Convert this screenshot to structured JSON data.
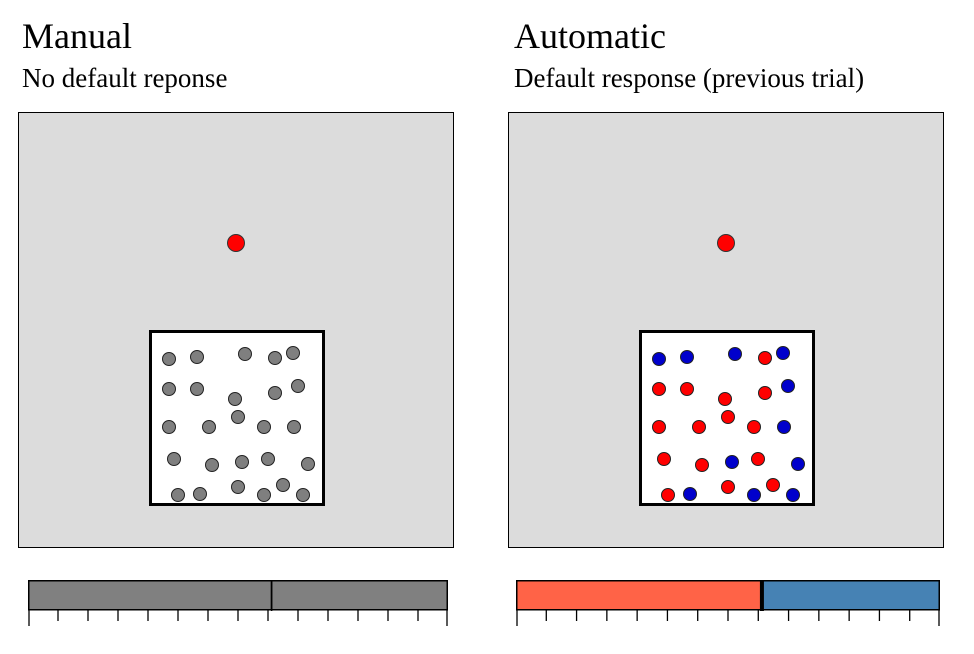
{
  "panels": [
    {
      "title": "Manual",
      "subtitle": "No default reponse",
      "dots": [
        "gray",
        "gray",
        "gray",
        "gray",
        "gray",
        "gray",
        "gray",
        "gray",
        "gray",
        "gray",
        "gray",
        "gray",
        "gray",
        "gray",
        "gray",
        "gray",
        "gray",
        "gray",
        "gray",
        "gray",
        "gray",
        "gray",
        "gray",
        "gray",
        "gray",
        "gray"
      ],
      "scale": {
        "fill_fraction": 0.58,
        "left_color": "#808080",
        "right_color": "#808080",
        "divider": "thin"
      }
    },
    {
      "title": "Automatic",
      "subtitle": "Default response (previous trial)",
      "dots": [
        "blue",
        "blue",
        "blue",
        "red",
        "blue",
        "red",
        "red",
        "red",
        "blue",
        "red",
        "red",
        "red",
        "red",
        "red",
        "blue",
        "red",
        "red",
        "blue",
        "red",
        "blue",
        "red",
        "blue",
        "red",
        "blue",
        "blue",
        "red"
      ],
      "scale": {
        "fill_fraction": 0.58,
        "left_color": "#ff6347",
        "right_color": "#4682b4",
        "divider": "thick"
      }
    }
  ],
  "colors": {
    "target": "#ff0000",
    "gray": "#7f7f7f",
    "red": "#ff0000",
    "blue": "#0000cc",
    "arena": "#dcdcdc"
  },
  "scale_ticks": 14
}
